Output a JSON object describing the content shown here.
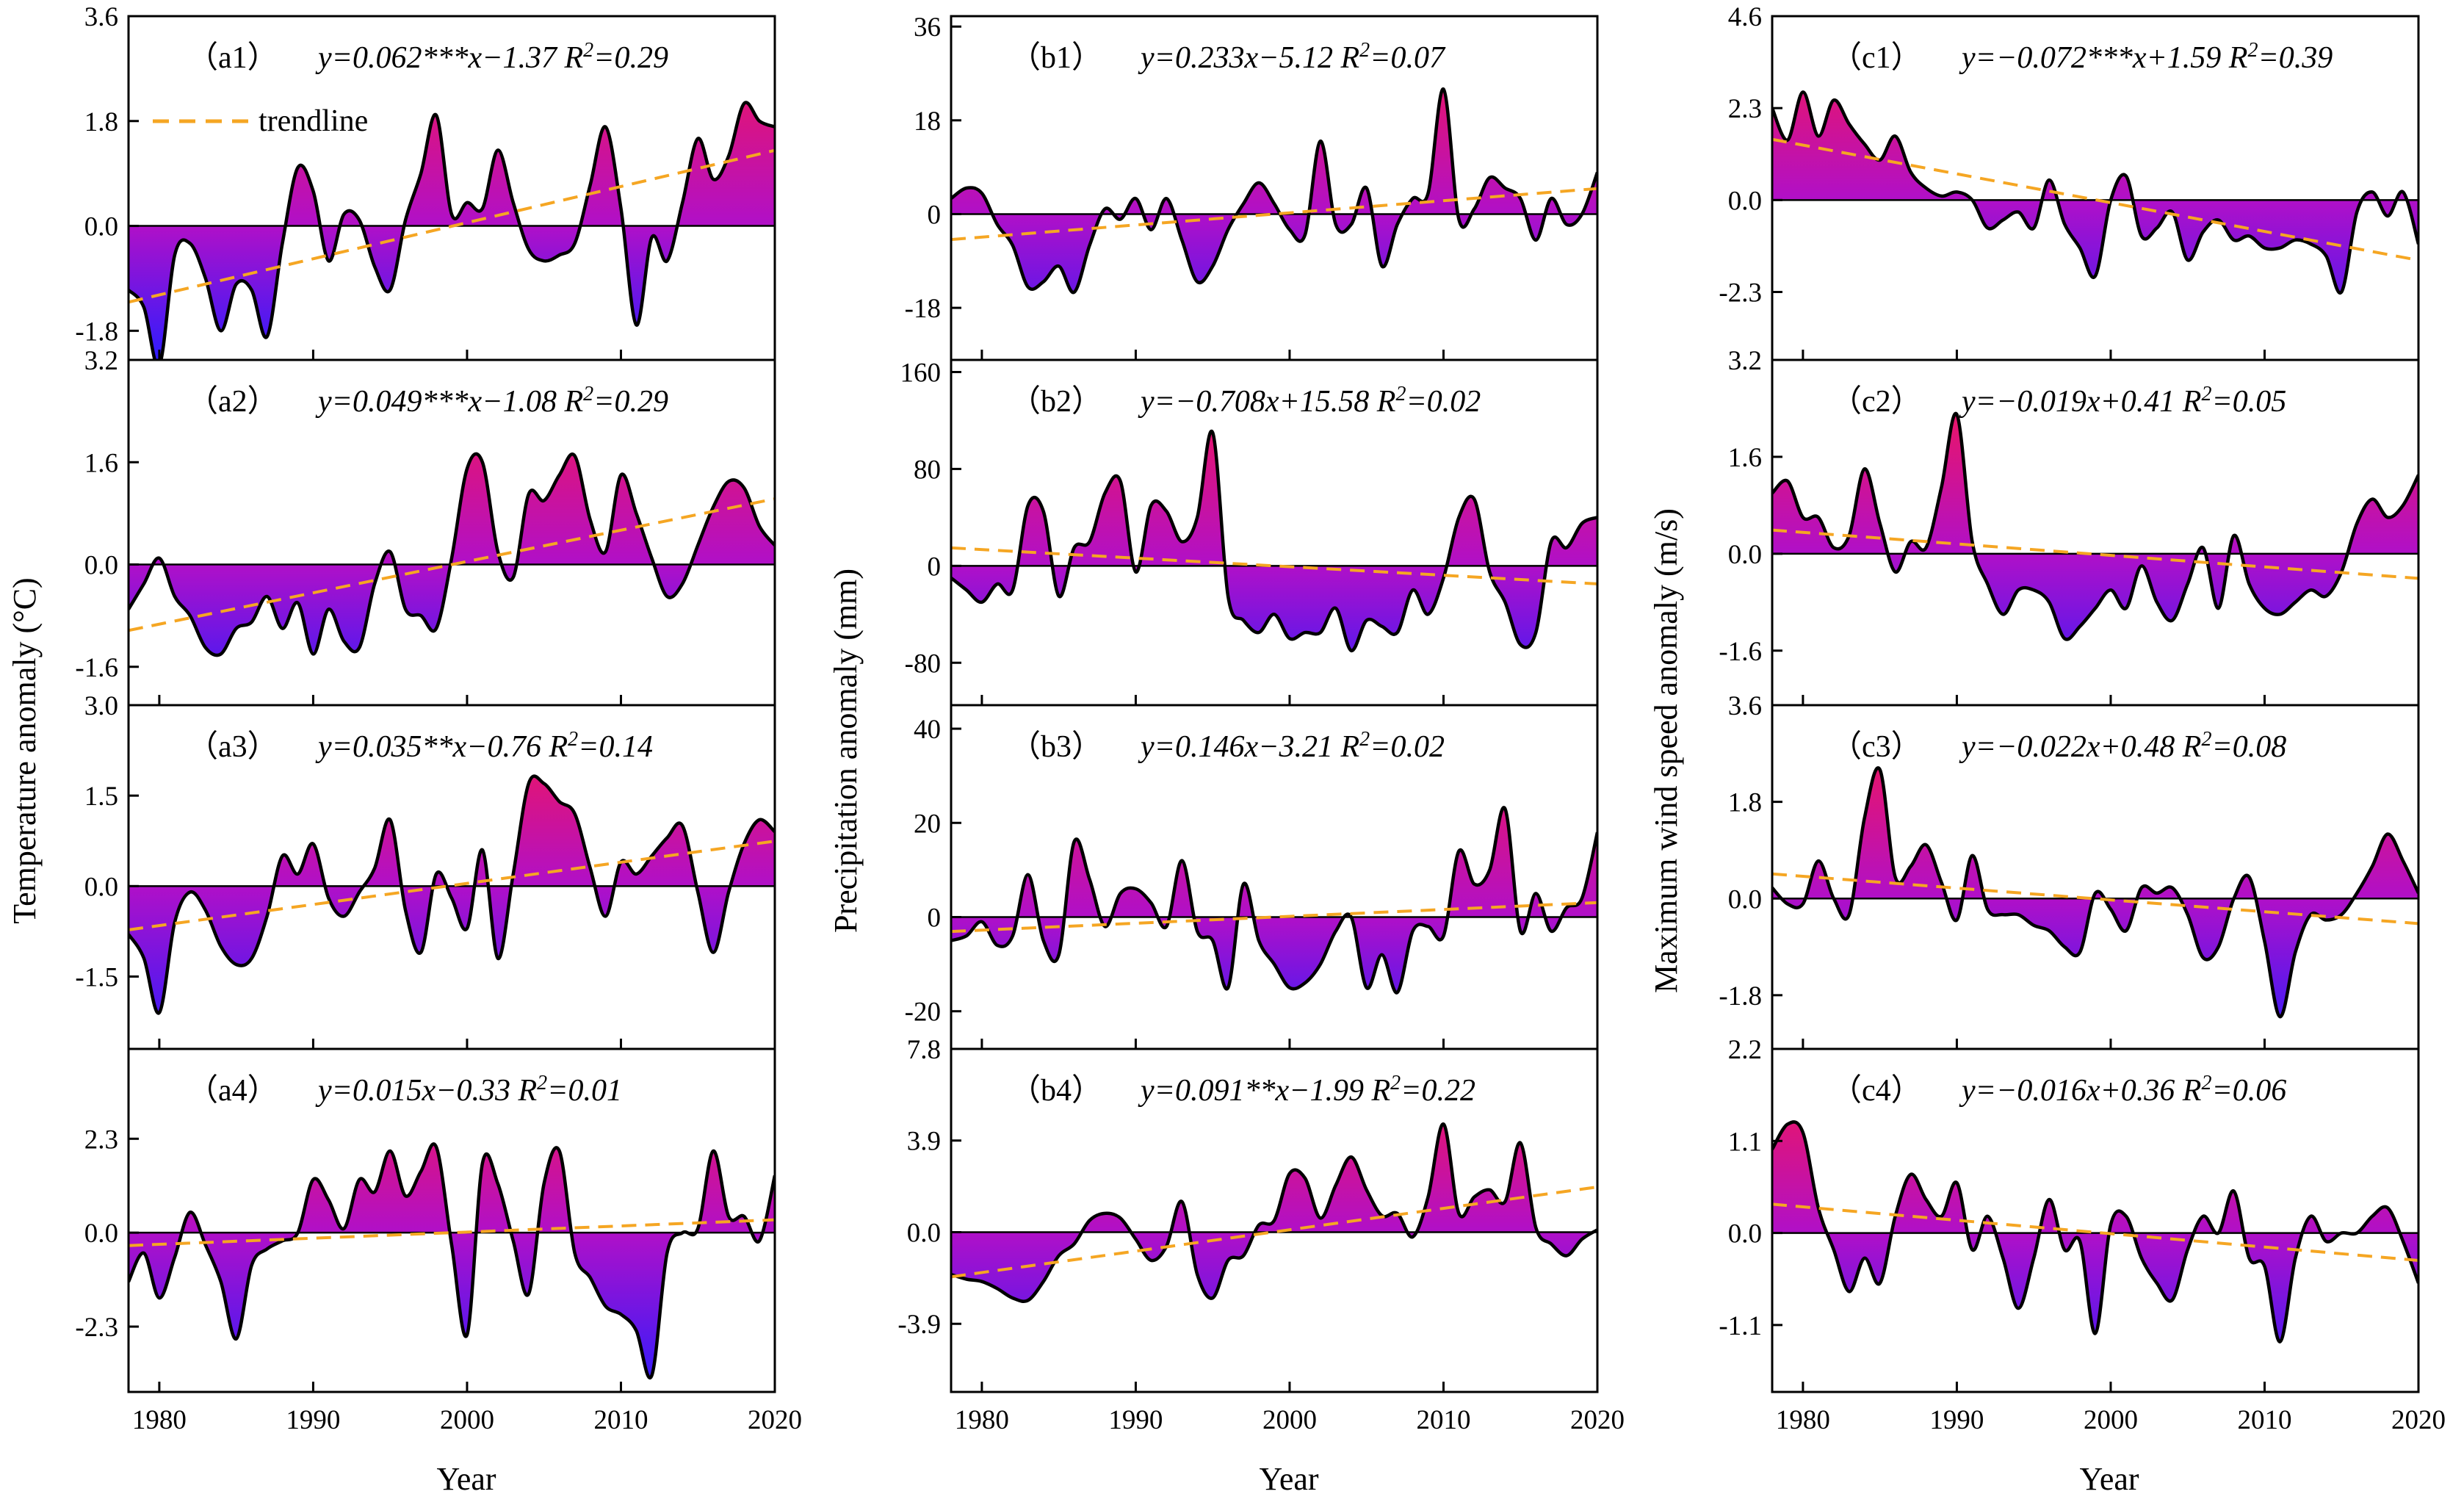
{
  "figure": {
    "colors": {
      "positive": "#ff1744",
      "negative": "#2e1cff",
      "mid": "#b010c8",
      "trendline": "#f5a623",
      "curve": "#000000"
    },
    "x_ticks": [
      1980,
      1990,
      2000,
      2010,
      2020
    ],
    "xlim": [
      1978,
      2020
    ],
    "xlabel": "Year",
    "legend_label": "trendline"
  },
  "column_labels": [
    "Temperature anomaly (°C)",
    "Precipitation anomaly (mm)",
    "Maximum wind speed anomaly (m/s)"
  ],
  "chart_data": [
    {
      "id": "a1",
      "type": "area",
      "tag": "（a1）",
      "eq": "y=0.062***x−1.37",
      "r2_value": "=0.29",
      "ylim": [
        -2.3,
        3.6
      ],
      "yticks": [
        "-1.8",
        "0.0",
        "1.8",
        "3.6"
      ],
      "ytick_values": [
        -1.8,
        0,
        1.8,
        3.6
      ],
      "trend": [
        0.062,
        -1.37
      ],
      "x": [
        1978,
        1979,
        1980,
        1981,
        1982,
        1983,
        1984,
        1985,
        1986,
        1987,
        1988,
        1989,
        1990,
        1991,
        1992,
        1993,
        1994,
        1995,
        1996,
        1997,
        1998,
        1999,
        2000,
        2001,
        2002,
        2003,
        2004,
        2005,
        2006,
        2007,
        2008,
        2009,
        2010,
        2011,
        2012,
        2013,
        2014,
        2015,
        2016,
        2017,
        2018,
        2019,
        2020
      ],
      "values": [
        -1.1,
        -1.4,
        -2.4,
        -0.5,
        -0.3,
        -0.9,
        -1.8,
        -1.0,
        -1.1,
        -1.9,
        -0.3,
        1.0,
        0.6,
        -0.6,
        0.2,
        0.1,
        -0.7,
        -1.1,
        0.1,
        0.9,
        1.9,
        0.2,
        0.4,
        0.3,
        1.3,
        0.4,
        -0.4,
        -0.6,
        -0.5,
        -0.3,
        0.7,
        1.7,
        0.3,
        -1.7,
        -0.2,
        -0.6,
        0.4,
        1.5,
        0.8,
        1.2,
        2.1,
        1.8,
        1.7
      ]
    },
    {
      "id": "a2",
      "type": "area",
      "tag": "（a2）",
      "eq": "y=0.049***x−1.08",
      "r2_value": "=0.29",
      "ylim": [
        -2.2,
        3.2
      ],
      "yticks": [
        "-1.6",
        "0.0",
        "1.6",
        "3.2"
      ],
      "ytick_values": [
        -1.6,
        0,
        1.6,
        3.2
      ],
      "trend": [
        0.049,
        -1.08
      ],
      "x": [
        1978,
        1979,
        1980,
        1981,
        1982,
        1983,
        1984,
        1985,
        1986,
        1987,
        1988,
        1989,
        1990,
        1991,
        1992,
        1993,
        1994,
        1995,
        1996,
        1997,
        1998,
        1999,
        2000,
        2001,
        2002,
        2003,
        2004,
        2005,
        2006,
        2007,
        2008,
        2009,
        2010,
        2011,
        2012,
        2013,
        2014,
        2015,
        2016,
        2017,
        2018,
        2019,
        2020
      ],
      "values": [
        -0.7,
        -0.3,
        0.1,
        -0.5,
        -0.8,
        -1.3,
        -1.4,
        -1.0,
        -0.9,
        -0.5,
        -1.0,
        -0.6,
        -1.4,
        -0.7,
        -1.2,
        -1.3,
        -0.3,
        0.2,
        -0.7,
        -0.8,
        -1.0,
        0.1,
        1.5,
        1.6,
        0.2,
        -0.2,
        1.1,
        1.0,
        1.4,
        1.7,
        0.7,
        0.2,
        1.4,
        0.8,
        0.1,
        -0.5,
        -0.3,
        0.3,
        0.9,
        1.3,
        1.2,
        0.6,
        0.3
      ]
    },
    {
      "id": "a3",
      "type": "area",
      "tag": "（a3）",
      "eq": "y=0.035**x−0.76",
      "r2_value": "=0.14",
      "ylim": [
        -2.7,
        3.0
      ],
      "yticks": [
        "-1.5",
        "0.0",
        "1.5",
        "3.0"
      ],
      "ytick_values": [
        -1.5,
        0,
        1.5,
        3.0
      ],
      "trend": [
        0.035,
        -0.76
      ],
      "x": [
        1978,
        1979,
        1980,
        1981,
        1982,
        1983,
        1984,
        1985,
        1986,
        1987,
        1988,
        1989,
        1990,
        1991,
        1992,
        1993,
        1994,
        1995,
        1996,
        1997,
        1998,
        1999,
        2000,
        2001,
        2002,
        2003,
        2004,
        2005,
        2006,
        2007,
        2008,
        2009,
        2010,
        2011,
        2012,
        2013,
        2014,
        2015,
        2016,
        2017,
        2018,
        2019,
        2020
      ],
      "values": [
        -0.8,
        -1.2,
        -2.1,
        -0.6,
        -0.1,
        -0.4,
        -1.0,
        -1.3,
        -1.2,
        -0.5,
        0.5,
        0.2,
        0.7,
        -0.2,
        -0.5,
        -0.1,
        0.3,
        1.1,
        -0.4,
        -1.1,
        0.2,
        -0.2,
        -0.7,
        0.6,
        -1.2,
        0.2,
        1.7,
        1.7,
        1.4,
        1.2,
        0.3,
        -0.5,
        0.4,
        0.2,
        0.5,
        0.8,
        1.0,
        -0.1,
        -1.1,
        -0.1,
        0.7,
        1.1,
        0.9
      ]
    },
    {
      "id": "a4",
      "type": "area",
      "tag": "（a4）",
      "eq": "y=0.015x−0.33",
      "r2_value": "=0.01",
      "ylim": [
        -3.9,
        4.5
      ],
      "yticks": [
        "-2.3",
        "0.0",
        "2.3"
      ],
      "ytick_values": [
        -2.3,
        0,
        2.3
      ],
      "trend": [
        0.015,
        -0.33
      ],
      "x": [
        1978,
        1979,
        1980,
        1981,
        1982,
        1983,
        1984,
        1985,
        1986,
        1987,
        1988,
        1989,
        1990,
        1991,
        1992,
        1993,
        1994,
        1995,
        1996,
        1997,
        1998,
        1999,
        2000,
        2001,
        2002,
        2003,
        2004,
        2005,
        2006,
        2007,
        2008,
        2009,
        2010,
        2011,
        2012,
        2013,
        2014,
        2015,
        2016,
        2017,
        2018,
        2019,
        2020
      ],
      "values": [
        -1.2,
        -0.5,
        -1.6,
        -0.6,
        0.5,
        -0.3,
        -1.2,
        -2.6,
        -0.8,
        -0.4,
        -0.2,
        0.0,
        1.3,
        0.8,
        0.1,
        1.3,
        1.0,
        2.0,
        0.9,
        1.5,
        2.1,
        -0.3,
        -2.5,
        1.7,
        1.2,
        -0.2,
        -1.5,
        1.2,
        2.0,
        -0.5,
        -1.1,
        -1.8,
        -2.0,
        -2.4,
        -3.5,
        -0.5,
        0.0,
        0.1,
        2.0,
        0.4,
        0.4,
        -0.2,
        1.4
      ]
    },
    {
      "id": "b1",
      "type": "area",
      "tag": "（b1）",
      "eq": "y=0.233x−5.12",
      "r2_value": "=0.07",
      "ylim": [
        -28,
        38
      ],
      "yticks": [
        "-18",
        "0",
        "18",
        "36"
      ],
      "ytick_values": [
        -18,
        0,
        18,
        36
      ],
      "trend": [
        0.233,
        -5.12
      ],
      "x": [
        1978,
        1979,
        1980,
        1981,
        1982,
        1983,
        1984,
        1985,
        1986,
        1987,
        1988,
        1989,
        1990,
        1991,
        1992,
        1993,
        1994,
        1995,
        1996,
        1997,
        1998,
        1999,
        2000,
        2001,
        2002,
        2003,
        2004,
        2005,
        2006,
        2007,
        2008,
        2009,
        2010,
        2011,
        2012,
        2013,
        2014,
        2015,
        2016,
        2017,
        2018,
        2019,
        2020
      ],
      "values": [
        3,
        5,
        4,
        -2,
        -6,
        -14,
        -13,
        -10,
        -15,
        -6,
        1,
        -1,
        3,
        -3,
        3,
        -5,
        -13,
        -10,
        -3,
        2,
        6,
        2,
        -3,
        -4,
        14,
        -2,
        -2,
        5,
        -10,
        -2,
        3,
        4,
        24,
        -1,
        1,
        7,
        5,
        3,
        -5,
        3,
        -2,
        0,
        8
      ]
    },
    {
      "id": "b2",
      "type": "area",
      "tag": "（b2）",
      "eq": "y=−0.708x+15.58",
      "r2_value": "=0.02",
      "ylim": [
        -115,
        170
      ],
      "yticks": [
        "-80",
        "0",
        "80",
        "160"
      ],
      "ytick_values": [
        -80,
        0,
        80,
        160
      ],
      "trend": [
        -0.708,
        15.58
      ],
      "x": [
        1978,
        1979,
        1980,
        1981,
        1982,
        1983,
        1984,
        1985,
        1986,
        1987,
        1988,
        1989,
        1990,
        1991,
        1992,
        1993,
        1994,
        1995,
        1996,
        1997,
        1998,
        1999,
        2000,
        2001,
        2002,
        2003,
        2004,
        2005,
        2006,
        2007,
        2008,
        2009,
        2010,
        2011,
        2012,
        2013,
        2014,
        2015,
        2016,
        2017,
        2018,
        2019,
        2020
      ],
      "values": [
        -10,
        -20,
        -30,
        -15,
        -20,
        50,
        45,
        -25,
        15,
        20,
        60,
        70,
        -5,
        50,
        45,
        20,
        40,
        110,
        -25,
        -45,
        -55,
        -40,
        -60,
        -55,
        -55,
        -35,
        -70,
        -45,
        -50,
        -55,
        -20,
        -40,
        -10,
        40,
        55,
        -5,
        -30,
        -65,
        -55,
        20,
        15,
        35,
        40
      ]
    },
    {
      "id": "b3",
      "type": "area",
      "tag": "（b3）",
      "eq": "y=0.146x−3.21",
      "r2_value": "=0.02",
      "ylim": [
        -28,
        45
      ],
      "yticks": [
        "-20",
        "0",
        "20",
        "40"
      ],
      "ytick_values": [
        -20,
        0,
        20,
        40
      ],
      "trend": [
        0.146,
        -3.21
      ],
      "x": [
        1978,
        1979,
        1980,
        1981,
        1982,
        1983,
        1984,
        1985,
        1986,
        1987,
        1988,
        1989,
        1990,
        1991,
        1992,
        1993,
        1994,
        1995,
        1996,
        1997,
        1998,
        1999,
        2000,
        2001,
        2002,
        2003,
        2004,
        2005,
        2006,
        2007,
        2008,
        2009,
        2010,
        2011,
        2012,
        2013,
        2014,
        2015,
        2016,
        2017,
        2018,
        2019,
        2020
      ],
      "values": [
        -5,
        -4,
        -1,
        -6,
        -4,
        9,
        -5,
        -8,
        16,
        8,
        -2,
        5,
        6,
        3,
        -2,
        12,
        -3,
        -5,
        -15,
        7,
        -5,
        -10,
        -15,
        -14,
        -10,
        -3,
        0,
        -15,
        -8,
        -16,
        -3,
        -2,
        -4,
        14,
        7,
        10,
        23,
        -3,
        5,
        -3,
        2,
        4,
        18
      ]
    },
    {
      "id": "b4",
      "type": "area",
      "tag": "（b4）",
      "eq": "y=0.091**x−1.99",
      "r2_value": "=0.22",
      "ylim": [
        -6.8,
        7.8
      ],
      "yticks": [
        "-3.9",
        "0.0",
        "3.9",
        "7.8"
      ],
      "ytick_values": [
        -3.9,
        0,
        3.9,
        7.8
      ],
      "trend": [
        0.091,
        -1.99
      ],
      "x": [
        1978,
        1979,
        1980,
        1981,
        1982,
        1983,
        1984,
        1985,
        1986,
        1987,
        1988,
        1989,
        1990,
        1991,
        1992,
        1993,
        1994,
        1995,
        1996,
        1997,
        1998,
        1999,
        2000,
        2001,
        2002,
        2003,
        2004,
        2005,
        2006,
        2007,
        2008,
        2009,
        2010,
        2011,
        2012,
        2013,
        2014,
        2015,
        2016,
        2017,
        2018,
        2019,
        2020
      ],
      "values": [
        -1.8,
        -2.0,
        -2.1,
        -2.4,
        -2.8,
        -2.9,
        -2.1,
        -1.0,
        -0.5,
        0.5,
        0.8,
        0.6,
        -0.3,
        -1.2,
        -0.6,
        1.3,
        -1.8,
        -2.8,
        -1.2,
        -1.0,
        0.3,
        0.5,
        2.5,
        2.3,
        0.6,
        2.0,
        3.2,
        1.8,
        0.7,
        0.8,
        -0.2,
        1.5,
        4.6,
        0.8,
        1.5,
        1.8,
        1.3,
        3.8,
        0.2,
        -0.5,
        -1.0,
        -0.3,
        0.1
      ]
    },
    {
      "id": "c1",
      "type": "area",
      "tag": "（c1）",
      "eq": "y=−0.072***x+1.59",
      "r2_value": "=0.39",
      "ylim": [
        -4.0,
        4.6
      ],
      "yticks": [
        "-2.3",
        "0.0",
        "2.3",
        "4.6"
      ],
      "ytick_values": [
        -2.3,
        0,
        2.3,
        4.6
      ],
      "trend": [
        -0.072,
        1.59
      ],
      "x": [
        1978,
        1979,
        1980,
        1981,
        1982,
        1983,
        1984,
        1985,
        1986,
        1987,
        1988,
        1989,
        1990,
        1991,
        1992,
        1993,
        1994,
        1995,
        1996,
        1997,
        1998,
        1999,
        2000,
        2001,
        2002,
        2003,
        2004,
        2005,
        2006,
        2007,
        2008,
        2009,
        2010,
        2011,
        2012,
        2013,
        2014,
        2015,
        2016,
        2017,
        2018,
        2019,
        2020
      ],
      "values": [
        2.3,
        1.5,
        2.7,
        1.6,
        2.5,
        1.9,
        1.4,
        1.0,
        1.6,
        0.7,
        0.3,
        0.1,
        0.2,
        0.0,
        -0.7,
        -0.5,
        -0.3,
        -0.7,
        0.5,
        -0.6,
        -1.2,
        -1.9,
        0.0,
        0.6,
        -0.9,
        -0.7,
        -0.3,
        -1.5,
        -0.8,
        -0.5,
        -1.0,
        -0.9,
        -1.2,
        -1.2,
        -1.0,
        -1.1,
        -1.4,
        -2.3,
        -0.3,
        0.2,
        -0.4,
        0.2,
        -1.1
      ]
    },
    {
      "id": "c2",
      "type": "area",
      "tag": "（c2）",
      "eq": "y=−0.019x+0.41",
      "r2_value": "=0.05",
      "ylim": [
        -2.5,
        3.2
      ],
      "yticks": [
        "-1.6",
        "0.0",
        "1.6",
        "3.2"
      ],
      "ytick_values": [
        -1.6,
        0,
        1.6,
        3.2
      ],
      "trend": [
        -0.019,
        0.41
      ],
      "x": [
        1978,
        1979,
        1980,
        1981,
        1982,
        1983,
        1984,
        1985,
        1986,
        1987,
        1988,
        1989,
        1990,
        1991,
        1992,
        1993,
        1994,
        1995,
        1996,
        1997,
        1998,
        1999,
        2000,
        2001,
        2002,
        2003,
        2004,
        2005,
        2006,
        2007,
        2008,
        2009,
        2010,
        2011,
        2012,
        2013,
        2014,
        2015,
        2016,
        2017,
        2018,
        2019,
        2020
      ],
      "values": [
        1.0,
        1.2,
        0.6,
        0.6,
        0.1,
        0.3,
        1.4,
        0.5,
        -0.3,
        0.2,
        0.1,
        1.1,
        2.3,
        0.2,
        -0.5,
        -1.0,
        -0.6,
        -0.6,
        -0.8,
        -1.4,
        -1.2,
        -0.9,
        -0.6,
        -0.9,
        -0.2,
        -0.8,
        -1.1,
        -0.5,
        0.1,
        -0.9,
        0.3,
        -0.5,
        -0.9,
        -1.0,
        -0.8,
        -0.6,
        -0.7,
        -0.3,
        0.5,
        0.9,
        0.6,
        0.8,
        1.3
      ]
    },
    {
      "id": "c3",
      "type": "area",
      "tag": "（c3）",
      "eq": "y=−0.022x+0.48",
      "r2_value": "=0.08",
      "ylim": [
        -2.8,
        3.6
      ],
      "yticks": [
        "-1.8",
        "0.0",
        "1.8",
        "3.6"
      ],
      "ytick_values": [
        -1.8,
        0,
        1.8,
        3.6
      ],
      "trend": [
        -0.022,
        0.48
      ],
      "x": [
        1978,
        1979,
        1980,
        1981,
        1982,
        1983,
        1984,
        1985,
        1986,
        1987,
        1988,
        1989,
        1990,
        1991,
        1992,
        1993,
        1994,
        1995,
        1996,
        1997,
        1998,
        1999,
        2000,
        2001,
        2002,
        2003,
        2004,
        2005,
        2006,
        2007,
        2008,
        2009,
        2010,
        2011,
        2012,
        2013,
        2014,
        2015,
        2016,
        2017,
        2018,
        2019,
        2020
      ],
      "values": [
        0.2,
        -0.1,
        -0.1,
        0.7,
        0.0,
        -0.3,
        1.5,
        2.4,
        0.4,
        0.6,
        1.0,
        0.3,
        -0.4,
        0.8,
        -0.2,
        -0.3,
        -0.3,
        -0.5,
        -0.6,
        -0.9,
        -1.0,
        0.1,
        -0.2,
        -0.6,
        0.2,
        0.1,
        0.2,
        -0.3,
        -1.1,
        -0.9,
        0.0,
        0.4,
        -0.8,
        -2.2,
        -1.0,
        -0.3,
        -0.4,
        -0.3,
        0.1,
        0.6,
        1.2,
        0.7,
        0.1
      ]
    },
    {
      "id": "c4",
      "type": "area",
      "tag": "（c4）",
      "eq": "y=−0.016x+0.36",
      "r2_value": "=0.06",
      "ylim": [
        -1.9,
        2.2
      ],
      "yticks": [
        "-1.1",
        "0.0",
        "1.1",
        "2.2"
      ],
      "ytick_values": [
        -1.1,
        0,
        1.1,
        2.2
      ],
      "trend": [
        -0.016,
        0.36
      ],
      "x": [
        1978,
        1979,
        1980,
        1981,
        1982,
        1983,
        1984,
        1985,
        1986,
        1987,
        1988,
        1989,
        1990,
        1991,
        1992,
        1993,
        1994,
        1995,
        1996,
        1997,
        1998,
        1999,
        2000,
        2001,
        2002,
        2003,
        2004,
        2005,
        2006,
        2007,
        2008,
        2009,
        2010,
        2011,
        2012,
        2013,
        2014,
        2015,
        2016,
        2017,
        2018,
        2019,
        2020
      ],
      "values": [
        1.0,
        1.3,
        1.2,
        0.3,
        -0.2,
        -0.7,
        -0.3,
        -0.6,
        0.2,
        0.7,
        0.4,
        0.2,
        0.6,
        -0.2,
        0.2,
        -0.3,
        -0.9,
        -0.3,
        0.4,
        -0.2,
        -0.1,
        -1.2,
        0.1,
        0.2,
        -0.3,
        -0.6,
        -0.8,
        -0.2,
        0.2,
        0.0,
        0.5,
        -0.3,
        -0.4,
        -1.3,
        -0.3,
        0.2,
        -0.1,
        0.0,
        0.0,
        0.2,
        0.3,
        -0.1,
        -0.6
      ]
    }
  ]
}
